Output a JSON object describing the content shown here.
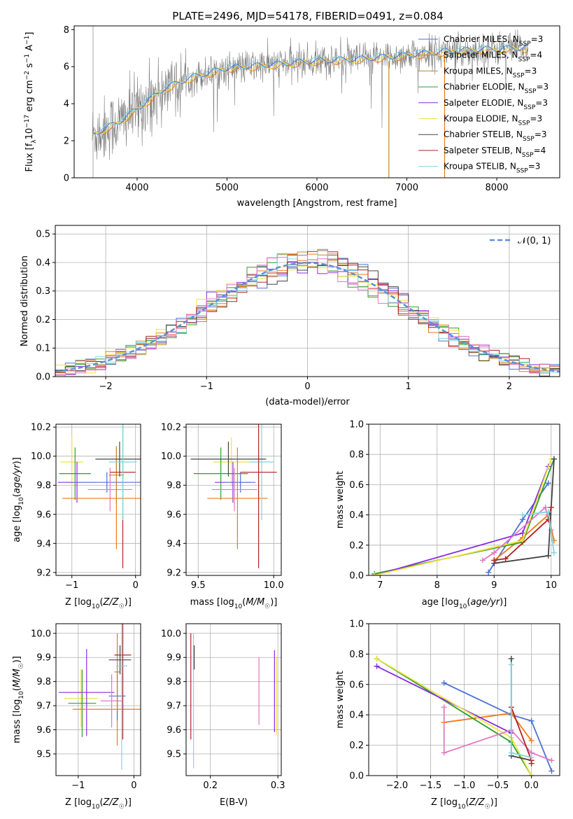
{
  "title": "PLATE=2496, MJD=54178, FIBERID=0491, z=0.084",
  "colors": {
    "Chabrier MILES": "#4c72d6",
    "Salpeter MILES": "#f07a17",
    "Kroupa MILES": "#bb8a2a",
    "Chabrier ELODIE": "#2ca02c",
    "Salpeter ELODIE": "#8a2be2",
    "Kroupa ELODIE": "#f0e442",
    "Chabrier STELIB": "#444444",
    "Salpeter STELIB": "#b22222",
    "Kroupa STELIB": "#7fd6e0",
    "pink": "#e377c2",
    "lime": "#9acd32",
    "data": "#808080"
  },
  "chart_data": [
    {
      "type": "line",
      "id": "spectrum",
      "xlabel": "wavelength [Angstrom, rest frame]",
      "ylabel": "Flux [f_λ 10^-17 erg cm^-2 s^-1 A^-1]",
      "xlim": [
        3300,
        8700
      ],
      "ylim": [
        0,
        8.2
      ],
      "xticks": [
        4000,
        5000,
        6000,
        7000,
        8000
      ],
      "yticks": [
        0,
        2,
        4,
        6,
        8
      ],
      "legend": "top-right",
      "legend_entries": [
        {
          "name": "Chabrier MILES",
          "n": "3"
        },
        {
          "name": "Salpeter MILES",
          "n": "4"
        },
        {
          "name": "Kroupa MILES",
          "n": "3"
        },
        {
          "name": "Chabrier ELODIE",
          "n": "3"
        },
        {
          "name": "Salpeter ELODIE",
          "n": "3"
        },
        {
          "name": "Kroupa ELODIE",
          "n": "3"
        },
        {
          "name": "Chabrier STELIB",
          "n": "3"
        },
        {
          "name": "Salpeter STELIB",
          "n": "4"
        },
        {
          "name": "Kroupa STELIB",
          "n": "3"
        }
      ],
      "continuum": {
        "x": [
          3500,
          3800,
          4000,
          4300,
          4600,
          5000,
          5500,
          6000,
          6500,
          7000,
          7400,
          7800,
          8300
        ],
        "y": [
          2.3,
          3.0,
          3.7,
          4.8,
          5.4,
          5.9,
          6.1,
          6.3,
          6.4,
          6.6,
          6.8,
          6.9,
          7.0
        ]
      }
    },
    {
      "type": "line",
      "id": "residuals",
      "xlabel": "(data-model)/error",
      "ylabel": "Normed distribution",
      "xlim": [
        -2.5,
        2.5
      ],
      "ylim": [
        0,
        0.53
      ],
      "xticks": [
        -2,
        -1,
        0,
        1,
        2
      ],
      "yticks": [
        0.0,
        0.1,
        0.2,
        0.3,
        0.4,
        0.5
      ],
      "legend": "top-right",
      "legend_label": "𝒩(0, 1)",
      "bin_width": 0.1
    },
    {
      "type": "scatter",
      "id": "age_vs_Z",
      "xlabel": "Z [log₁₀(Z/Z☉)]",
      "ylabel": "age  [log₁₀(age/yr)]",
      "xlim": [
        -1.25,
        0.08
      ],
      "ylim": [
        9.18,
        10.22
      ],
      "xticks": [
        -1,
        0
      ],
      "yticks": [
        9.2,
        9.4,
        9.6,
        9.8,
        10.0,
        10.2
      ],
      "points": [
        {
          "x": -1.0,
          "y": 9.96,
          "xe": 0.18,
          "ye": 0.17,
          "c": "Kroupa ELODIE"
        },
        {
          "x": -0.95,
          "y": 9.88,
          "xe": 0.25,
          "ye": 0.18,
          "c": "Chabrier ELODIE"
        },
        {
          "x": -0.92,
          "y": 9.82,
          "xe": 0.3,
          "ye": 0.14,
          "c": "Salpeter ELODIE"
        },
        {
          "x": -0.45,
          "y": 9.82,
          "xe": 0.55,
          "ye": 0.07,
          "c": "Chabrier MILES"
        },
        {
          "x": -0.4,
          "y": 9.77,
          "xe": 0.35,
          "ye": 0.15,
          "c": "pink"
        },
        {
          "x": -0.3,
          "y": 9.71,
          "xe": 0.85,
          "ye": 0.35,
          "c": "Salpeter MILES"
        },
        {
          "x": -0.3,
          "y": 9.87,
          "xe": 0.12,
          "ye": 0.2,
          "c": "Kroupa MILES"
        },
        {
          "x": -0.25,
          "y": 9.98,
          "xe": 0.38,
          "ye": 0.12,
          "c": "Chabrier STELIB"
        },
        {
          "x": -0.2,
          "y": 9.89,
          "xe": 0.2,
          "ye": 0.66,
          "c": "Salpeter STELIB"
        },
        {
          "x": -0.2,
          "y": 9.96,
          "xe": 0.22,
          "ye": 0.4,
          "c": "Kroupa STELIB"
        }
      ]
    },
    {
      "type": "scatter",
      "id": "age_vs_mass",
      "xlabel": "mass [log₁₀(M/M☉)]",
      "ylim": [
        9.18,
        10.22
      ],
      "xlim": [
        9.42,
        10.05
      ],
      "xticks": [
        9.5,
        10.0
      ],
      "yticks": [
        9.2,
        9.4,
        9.6,
        9.8,
        10.0,
        10.2
      ],
      "points": [
        {
          "x": 9.72,
          "y": 9.96,
          "xe": 0.12,
          "ye": 0.17,
          "c": "Kroupa ELODIE"
        },
        {
          "x": 9.65,
          "y": 9.88,
          "xe": 0.18,
          "ye": 0.18,
          "c": "Chabrier ELODIE"
        },
        {
          "x": 9.73,
          "y": 9.82,
          "xe": 0.12,
          "ye": 0.14,
          "c": "Salpeter ELODIE"
        },
        {
          "x": 9.78,
          "y": 9.82,
          "xe": 0.1,
          "ye": 0.07,
          "c": "Chabrier MILES"
        },
        {
          "x": 9.76,
          "y": 9.71,
          "xe": 0.2,
          "ye": 0.35,
          "c": "Salpeter MILES"
        },
        {
          "x": 9.92,
          "y": 9.96,
          "xe": 0.08,
          "ye": 0.4,
          "c": "Kroupa STELIB"
        },
        {
          "x": 9.9,
          "y": 9.89,
          "xe": 0.12,
          "ye": 0.66,
          "c": "Salpeter STELIB"
        },
        {
          "x": 9.7,
          "y": 9.98,
          "xe": 0.25,
          "ye": 0.12,
          "c": "Chabrier STELIB"
        },
        {
          "x": 9.74,
          "y": 9.77,
          "xe": 0.15,
          "ye": 0.15,
          "c": "pink"
        }
      ]
    },
    {
      "type": "line",
      "id": "weight_vs_age",
      "xlabel": "age  [log₁₀(age/yr)]",
      "ylabel": "mass weight",
      "xlim": [
        6.8,
        10.15
      ],
      "ylim": [
        0,
        1
      ],
      "xticks": [
        7,
        8,
        9,
        10
      ],
      "yticks": [
        0.0,
        0.2,
        0.4,
        0.6,
        0.8,
        1.0
      ],
      "series": [
        {
          "c": "Chabrier MILES",
          "x": [
            8.9,
            9.5,
            9.95
          ],
          "y": [
            0.02,
            0.37,
            0.61
          ]
        },
        {
          "c": "Salpeter MILES",
          "x": [
            9.0,
            9.5,
            9.95,
            10.05
          ],
          "y": [
            0.1,
            0.25,
            0.4,
            0.23
          ]
        },
        {
          "c": "Chabrier ELODIE",
          "x": [
            6.9,
            9.5,
            10.05
          ],
          "y": [
            0.01,
            0.22,
            0.77
          ]
        },
        {
          "c": "Salpeter ELODIE",
          "x": [
            6.9,
            9.5,
            9.95
          ],
          "y": [
            0.0,
            0.28,
            0.72
          ]
        },
        {
          "c": "Kroupa ELODIE",
          "x": [
            6.9,
            9.5,
            10.0
          ],
          "y": [
            0.0,
            0.23,
            0.77
          ]
        },
        {
          "c": "pink",
          "x": [
            8.8,
            9.0,
            9.9,
            10.0
          ],
          "y": [
            0.1,
            0.15,
            0.45,
            0.3
          ]
        },
        {
          "c": "Chabrier STELIB",
          "x": [
            9.0,
            9.95,
            10.05
          ],
          "y": [
            0.08,
            0.13,
            0.77
          ]
        },
        {
          "c": "Salpeter STELIB",
          "x": [
            9.0,
            9.2,
            9.95,
            10.0
          ],
          "y": [
            0.1,
            0.11,
            0.37,
            0.45
          ]
        },
        {
          "c": "Kroupa STELIB",
          "x": [
            9.5,
            9.95,
            10.05
          ],
          "y": [
            0.4,
            0.42,
            0.15
          ]
        }
      ]
    },
    {
      "type": "scatter",
      "id": "mass_vs_Z",
      "xlabel": "Z [log₁₀(Z/Z☉)]",
      "ylabel": "mass [log₁₀(M/M☉)]",
      "xlim": [
        -1.4,
        0.12
      ],
      "ylim": [
        9.41,
        10.04
      ],
      "xticks": [
        -1,
        0
      ],
      "yticks": [
        9.5,
        9.6,
        9.7,
        9.8,
        9.9,
        10.0
      ],
      "points": [
        {
          "x": -0.95,
          "y": 9.73,
          "xe": 0.3,
          "ye": 0.12,
          "c": "Kroupa ELODIE"
        },
        {
          "x": -0.93,
          "y": 9.71,
          "xe": 0.25,
          "ye": 0.14,
          "c": "Chabrier ELODIE"
        },
        {
          "x": -0.85,
          "y": 9.755,
          "xe": 0.5,
          "ye": 0.18,
          "c": "Salpeter ELODIE"
        },
        {
          "x": -0.3,
          "y": 9.685,
          "xe": 0.8,
          "ye": 0.15,
          "c": "Salpeter MILES"
        },
        {
          "x": -0.3,
          "y": 9.74,
          "xe": 0.15,
          "ye": 0.1,
          "c": "Chabrier MILES"
        },
        {
          "x": -0.4,
          "y": 9.72,
          "xe": 0.2,
          "ye": 0.11,
          "c": "pink"
        },
        {
          "x": -0.3,
          "y": 9.84,
          "xe": 0.05,
          "ye": 0.16,
          "c": "Kroupa MILES"
        },
        {
          "x": -0.2,
          "y": 9.91,
          "xe": 0.15,
          "ye": 0.35,
          "c": "Salpeter STELIB"
        },
        {
          "x": -0.25,
          "y": 9.89,
          "xe": 0.2,
          "ye": 0.06,
          "c": "Chabrier STELIB"
        },
        {
          "x": -0.22,
          "y": 9.865,
          "xe": 0.1,
          "ye": 0.43,
          "c": "Kroupa STELIB"
        }
      ]
    },
    {
      "type": "scatter",
      "id": "mass_vs_ebv",
      "xlabel": "E(B-V)",
      "xlim": [
        0.164,
        0.305
      ],
      "ylim": [
        9.41,
        10.04
      ],
      "xticks": [
        0.2,
        0.3
      ],
      "yticks": [
        9.5,
        9.6,
        9.7,
        9.8,
        9.9,
        10.0
      ],
      "points": [
        {
          "x": 0.171,
          "y": 9.78,
          "ye": 0.22,
          "c": "Salpeter STELIB"
        },
        {
          "x": 0.175,
          "y": 9.72,
          "ye": 0.28,
          "c": "Kroupa STELIB"
        },
        {
          "x": 0.176,
          "y": 9.9,
          "ye": 0.05,
          "c": "Chabrier STELIB"
        },
        {
          "x": 0.272,
          "y": 9.76,
          "ye": 0.14,
          "c": "pink"
        },
        {
          "x": 0.295,
          "y": 9.76,
          "ye": 0.17,
          "c": "Salpeter ELODIE"
        },
        {
          "x": 0.298,
          "y": 9.74,
          "ye": 0.16,
          "c": "Kroupa ELODIE"
        }
      ]
    },
    {
      "type": "line",
      "id": "weight_vs_Z",
      "xlabel": "Z [log₁₀(Z/Z☉)]",
      "ylabel": "mass weight",
      "xlim": [
        -2.42,
        0.42
      ],
      "ylim": [
        0,
        1
      ],
      "xticks": [
        -2.0,
        -1.5,
        -1.0,
        -0.5,
        0.0
      ],
      "yticks": [
        0.0,
        0.2,
        0.4,
        0.6,
        0.8,
        1.0
      ],
      "series": [
        {
          "c": "Chabrier MILES",
          "x": [
            -1.3,
            -0.3,
            0.0,
            0.3
          ],
          "y": [
            0.61,
            0.4,
            0.36,
            0.03
          ]
        },
        {
          "c": "Salpeter MILES",
          "x": [
            -1.3,
            -0.3,
            0.0
          ],
          "y": [
            0.35,
            0.41,
            0.23
          ]
        },
        {
          "c": "Chabrier ELODIE",
          "x": [
            -2.3,
            -0.3,
            0.0
          ],
          "y": [
            0.77,
            0.22,
            0.0
          ]
        },
        {
          "c": "Salpeter ELODIE",
          "x": [
            -2.3,
            -0.3
          ],
          "y": [
            0.72,
            0.28
          ]
        },
        {
          "c": "Kroupa ELODIE",
          "x": [
            -2.3,
            -0.3,
            0.0
          ],
          "y": [
            0.77,
            0.25,
            0.0
          ]
        },
        {
          "c": "pink",
          "x": [
            -1.3,
            -1.3,
            -0.3,
            0.0,
            0.3
          ],
          "y": [
            0.45,
            0.15,
            0.3,
            0.15,
            0.1
          ]
        },
        {
          "c": "Chabrier STELIB",
          "x": [
            -0.3,
            -0.3,
            0.0
          ],
          "y": [
            0.77,
            0.13,
            0.1
          ]
        },
        {
          "c": "Salpeter STELIB",
          "x": [
            -0.3,
            0.0,
            0.0
          ],
          "y": [
            0.45,
            0.1,
            0.08
          ]
        },
        {
          "c": "Kroupa STELIB",
          "x": [
            -0.3,
            -0.3,
            0.0
          ],
          "y": [
            0.73,
            0.15,
            0.12
          ]
        }
      ]
    }
  ]
}
